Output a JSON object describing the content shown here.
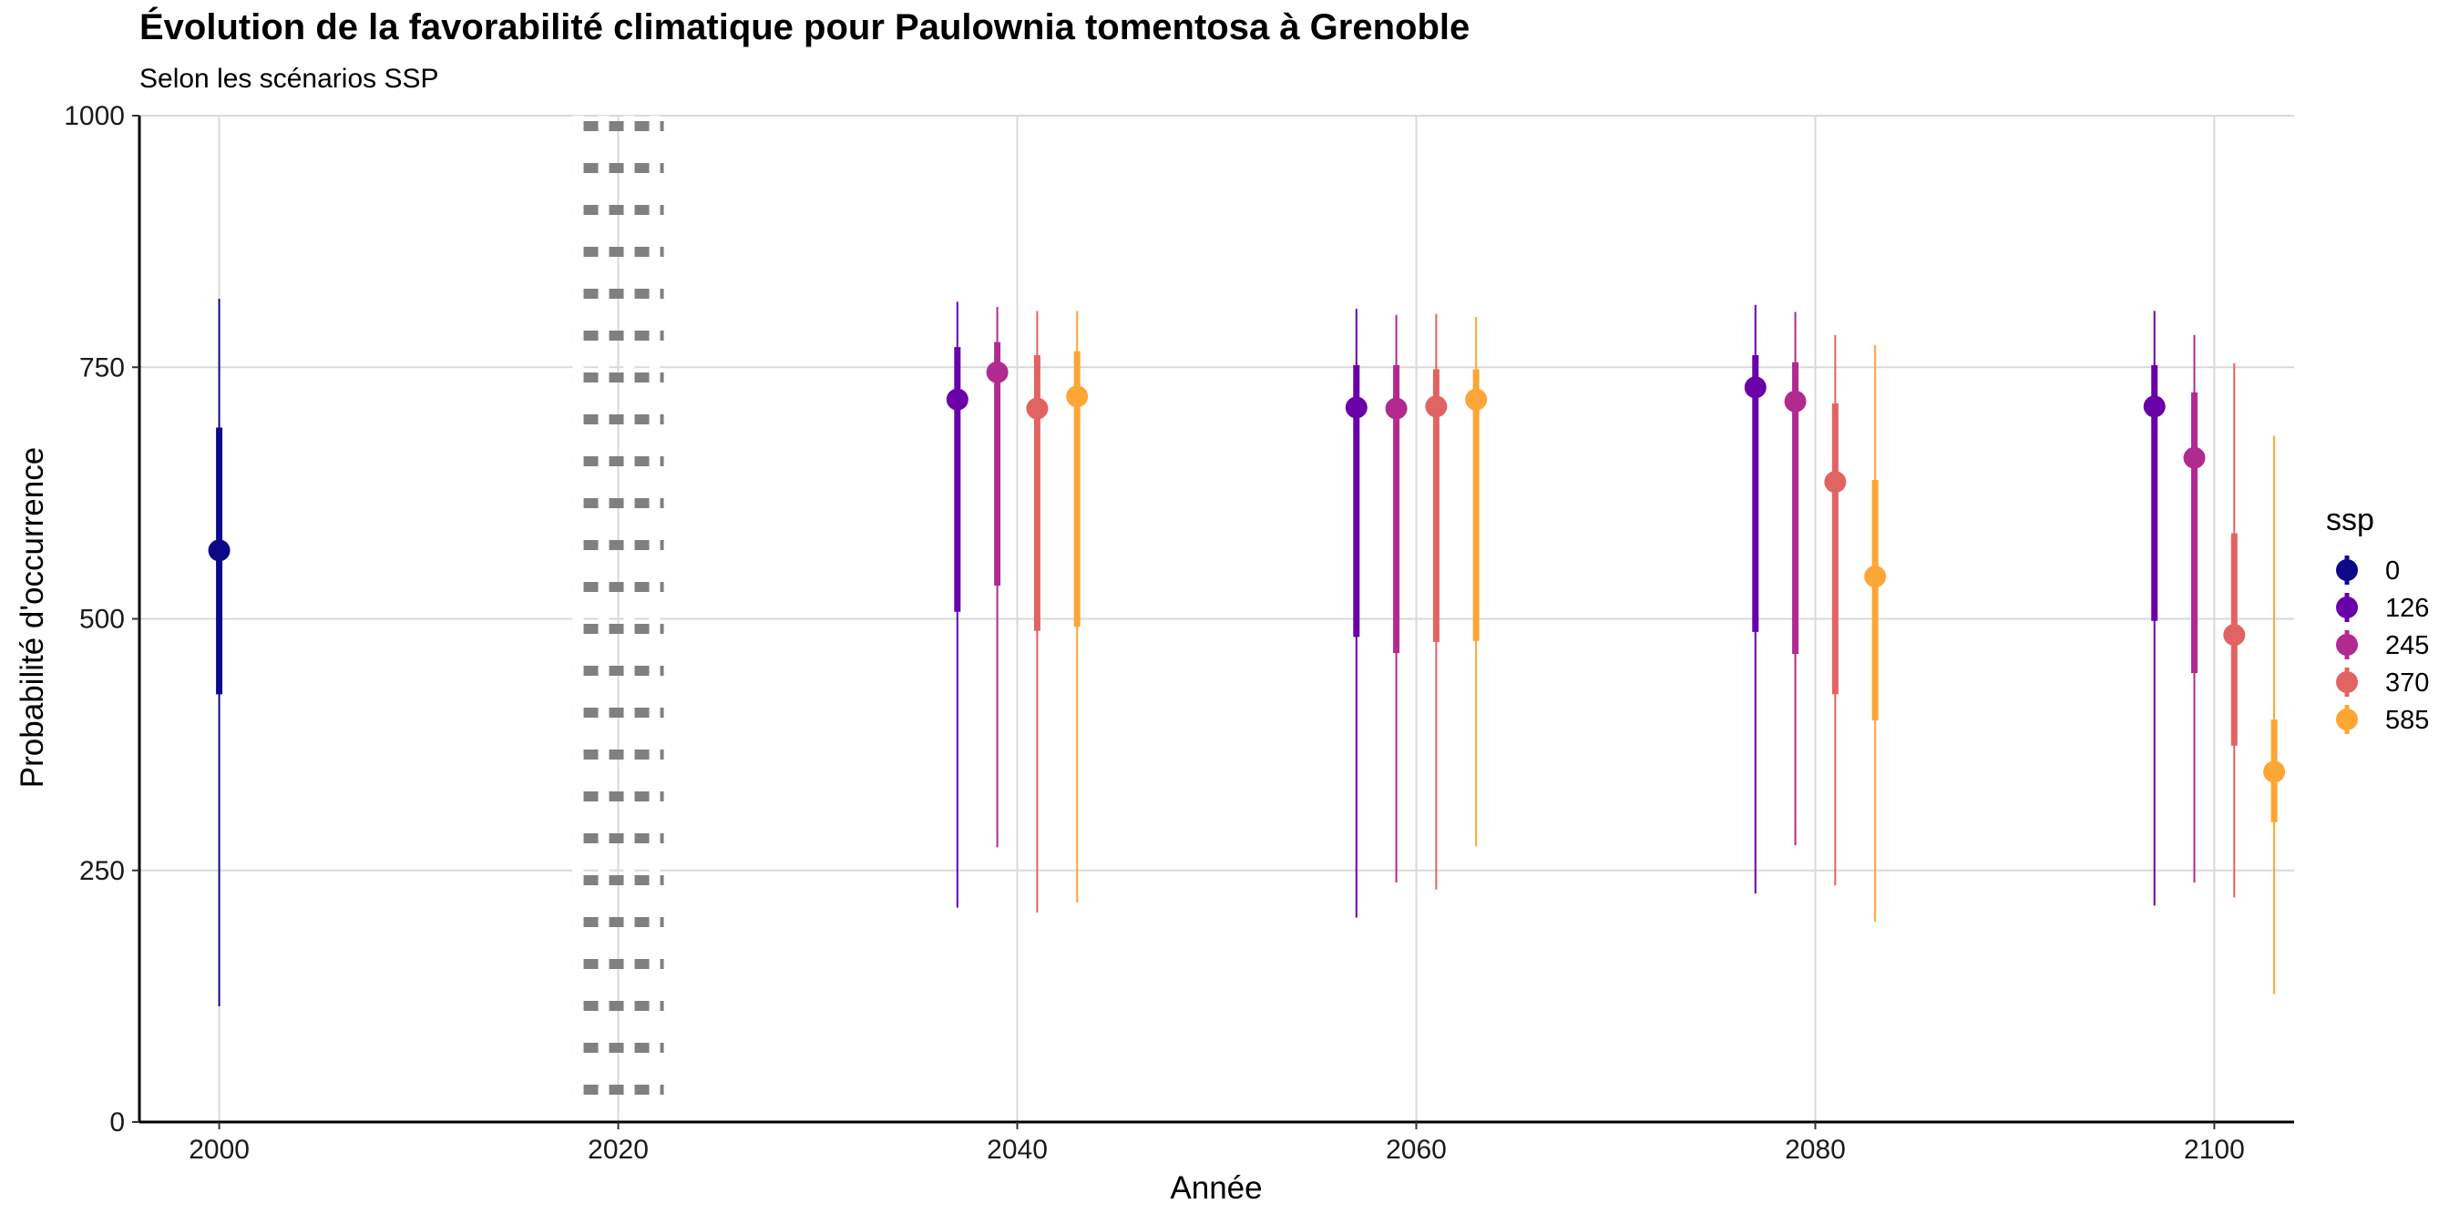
{
  "chart_data": {
    "type": "scatter",
    "title": "Évolution de la favorabilité climatique pour Paulownia tomentosa à Grenoble",
    "subtitle": "Selon les scénarios SSP",
    "xlabel": "Année",
    "ylabel": "Probabilité d'occurrence",
    "xlim": [
      1996,
      2104
    ],
    "ylim": [
      0,
      1000
    ],
    "x_ticks": [
      2000,
      2020,
      2040,
      2060,
      2080,
      2100
    ],
    "y_ticks": [
      0,
      250,
      500,
      750,
      1000
    ],
    "grid": true,
    "reference_line": {
      "x": 2020,
      "style": "dotted",
      "color": "#808080"
    },
    "legend": {
      "title": "ssp",
      "position": "right"
    },
    "series": [
      {
        "name": "0",
        "color": "#0d0887",
        "points": [
          {
            "x": 2000,
            "y": 568,
            "inner": [
              425,
              690
            ],
            "outer": [
              115,
              818
            ]
          }
        ]
      },
      {
        "name": "126",
        "color": "#6a00a8",
        "points": [
          {
            "x": 2037,
            "y": 718,
            "inner": [
              507,
              770
            ],
            "outer": [
              213,
              815
            ]
          },
          {
            "x": 2057,
            "y": 710,
            "inner": [
              482,
              752
            ],
            "outer": [
              203,
              808
            ]
          },
          {
            "x": 2077,
            "y": 730,
            "inner": [
              487,
              762
            ],
            "outer": [
              227,
              812
            ]
          },
          {
            "x": 2097,
            "y": 711,
            "inner": [
              498,
              752
            ],
            "outer": [
              215,
              806
            ]
          }
        ]
      },
      {
        "name": "245",
        "color": "#b12a90",
        "points": [
          {
            "x": 2039,
            "y": 745,
            "inner": [
              533,
              775
            ],
            "outer": [
              273,
              810
            ]
          },
          {
            "x": 2059,
            "y": 709,
            "inner": [
              466,
              752
            ],
            "outer": [
              238,
              802
            ]
          },
          {
            "x": 2079,
            "y": 716,
            "inner": [
              465,
              755
            ],
            "outer": [
              275,
              805
            ]
          },
          {
            "x": 2099,
            "y": 660,
            "inner": [
              446,
              725
            ],
            "outer": [
              238,
              782
            ]
          }
        ]
      },
      {
        "name": "370",
        "color": "#e16462",
        "points": [
          {
            "x": 2041,
            "y": 709,
            "inner": [
              488,
              762
            ],
            "outer": [
              208,
              806
            ]
          },
          {
            "x": 2061,
            "y": 711,
            "inner": [
              477,
              748
            ],
            "outer": [
              231,
              803
            ]
          },
          {
            "x": 2081,
            "y": 636,
            "inner": [
              425,
              714
            ],
            "outer": [
              235,
              782
            ]
          },
          {
            "x": 2101,
            "y": 484,
            "inner": [
              374,
              585
            ],
            "outer": [
              223,
              754
            ]
          }
        ]
      },
      {
        "name": "585",
        "color": "#fca636",
        "points": [
          {
            "x": 2043,
            "y": 721,
            "inner": [
              492,
              766
            ],
            "outer": [
              218,
              806
            ]
          },
          {
            "x": 2063,
            "y": 718,
            "inner": [
              478,
              748
            ],
            "outer": [
              274,
              800
            ]
          },
          {
            "x": 2083,
            "y": 542,
            "inner": [
              399,
              638
            ],
            "outer": [
              199,
              772
            ]
          },
          {
            "x": 2103,
            "y": 348,
            "inner": [
              298,
              400
            ],
            "outer": [
              127,
              682
            ]
          }
        ]
      }
    ]
  }
}
